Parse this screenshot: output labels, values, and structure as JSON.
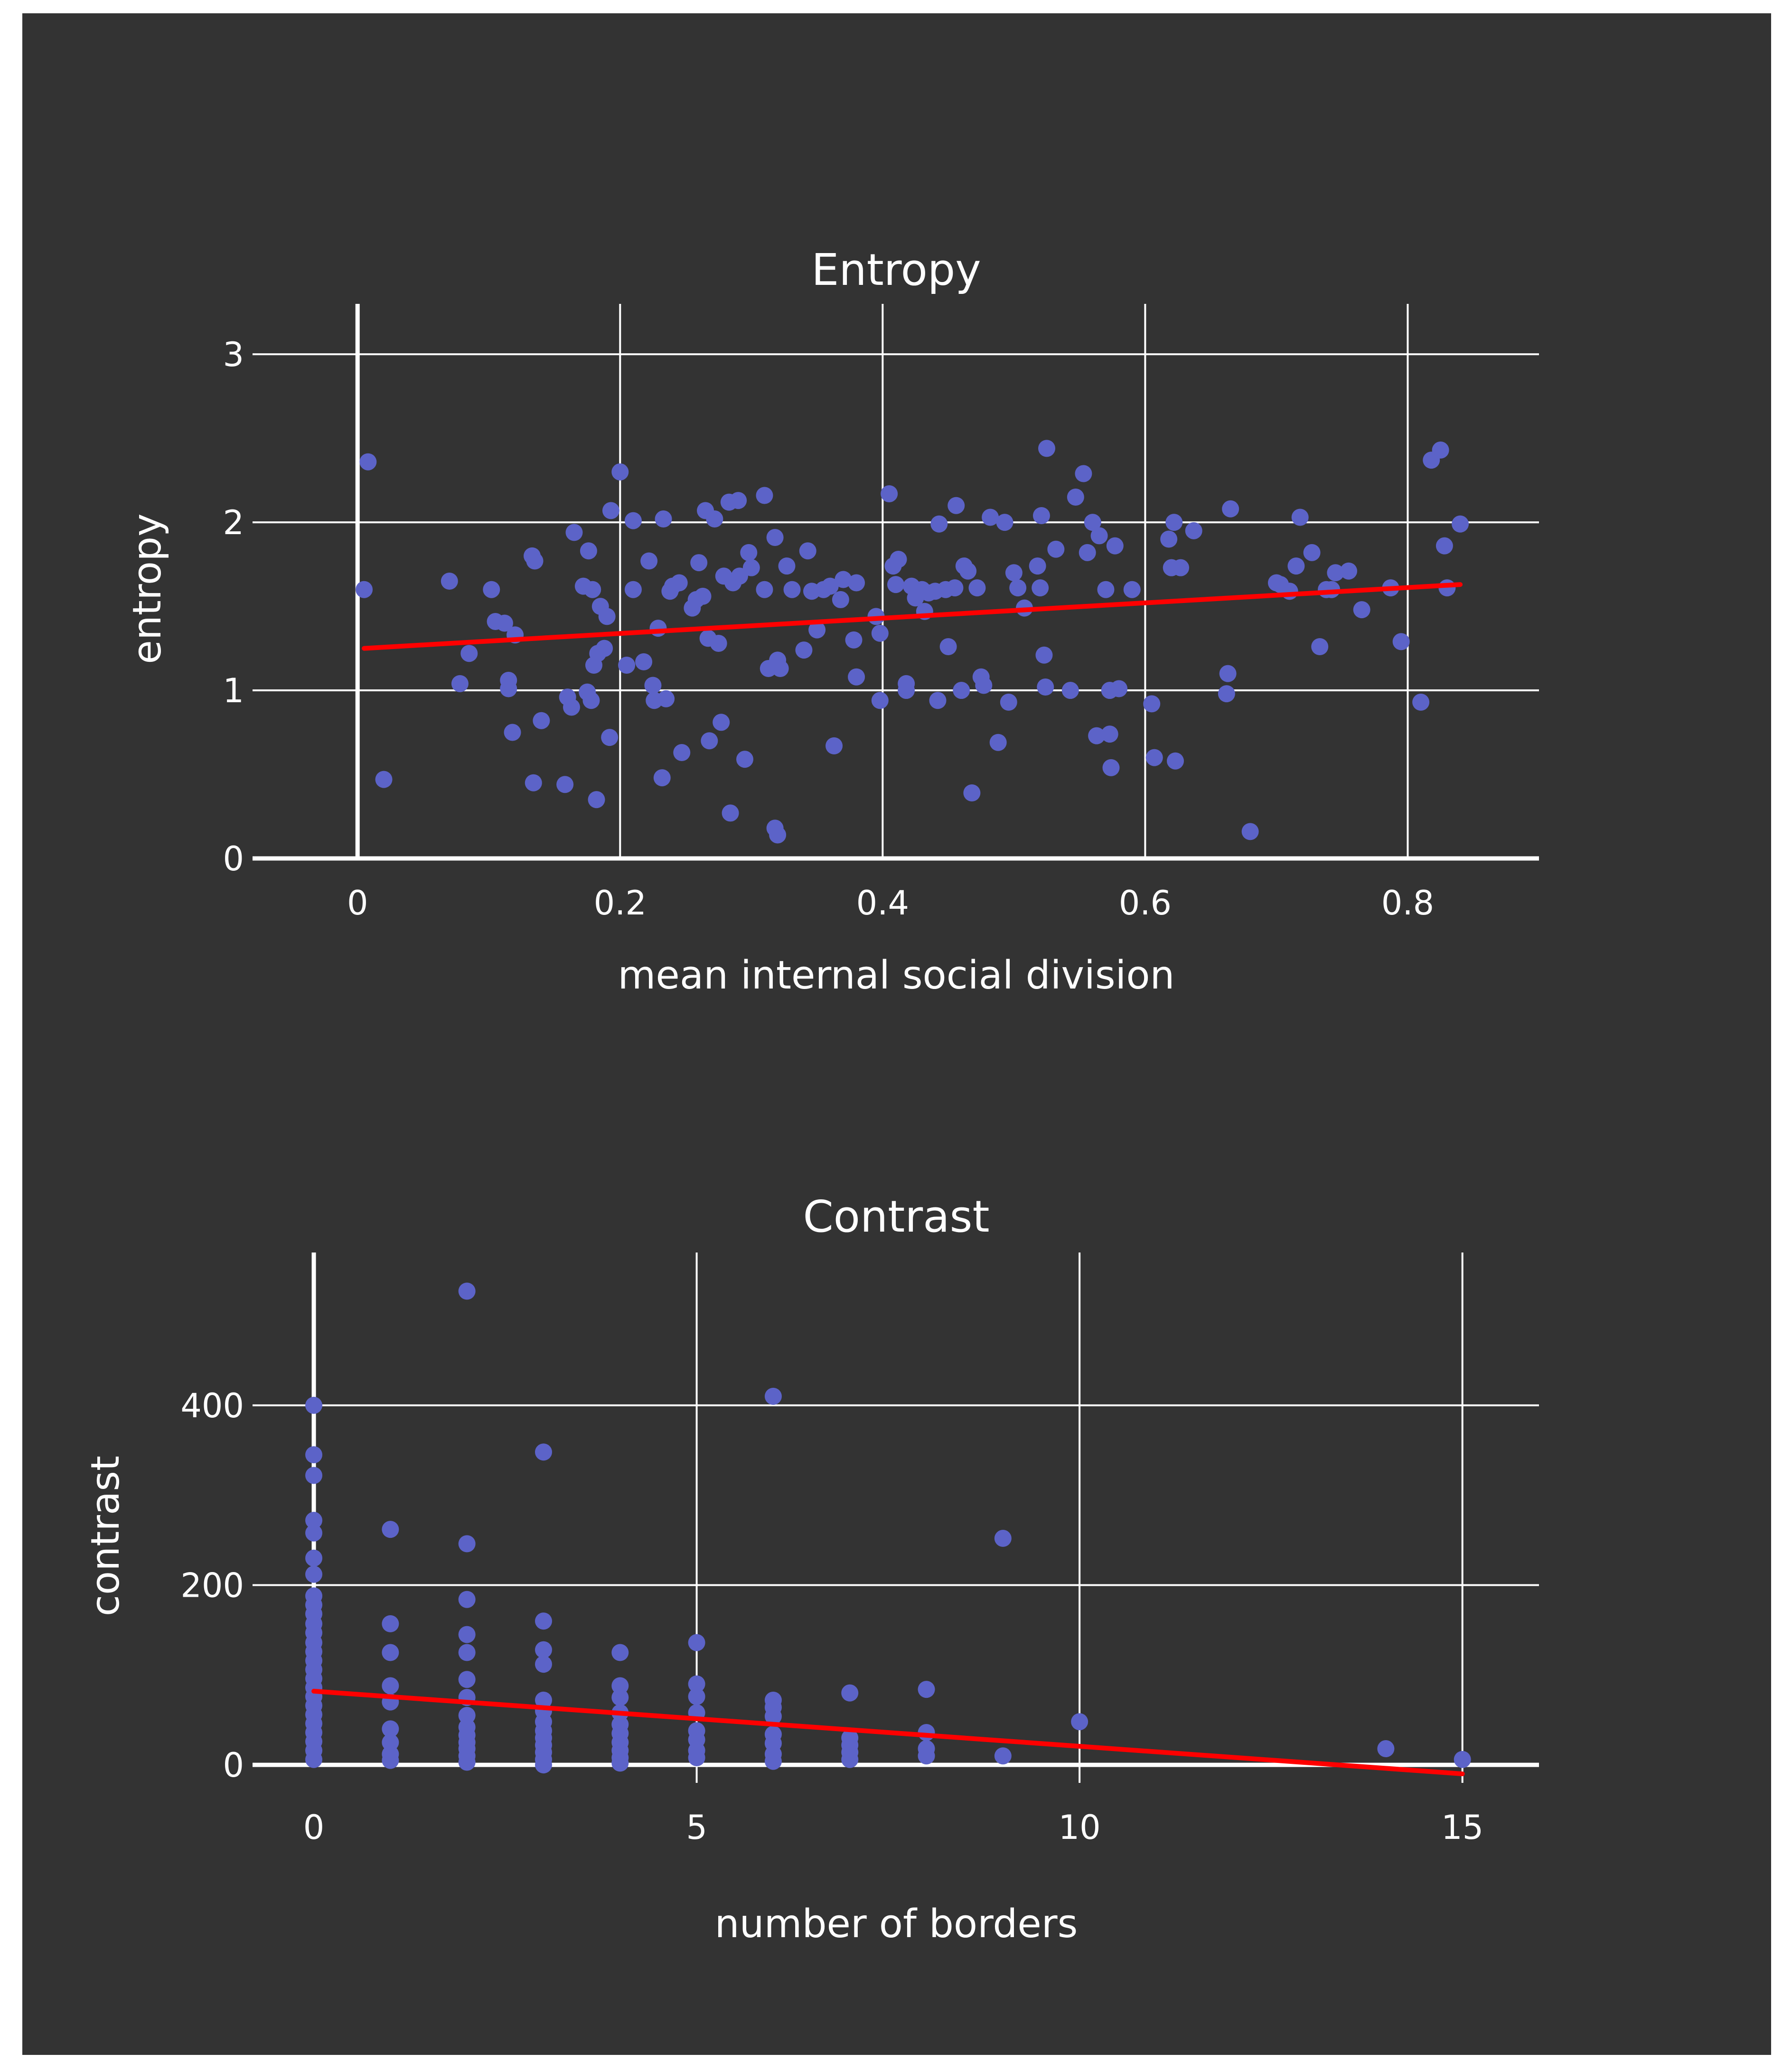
{
  "colors": {
    "background": "#333333",
    "grid": "#ffffff",
    "points": "#5c63c8",
    "trend": "#ff0000",
    "text": "#ffffff"
  },
  "chart_data": [
    {
      "type": "scatter",
      "title": "Entropy",
      "xlabel": "mean internal social division",
      "ylabel": "entropy",
      "xlim": [
        -0.08,
        0.9
      ],
      "ylim": [
        0,
        3.3
      ],
      "xticks": [
        0,
        0.2,
        0.4,
        0.6,
        0.8
      ],
      "xtick_labels": [
        "0",
        "0.2",
        "0.4",
        "0.6",
        "0.8"
      ],
      "yticks": [
        0,
        1,
        2,
        3
      ],
      "ytick_labels": [
        "0",
        "1",
        "2",
        "3"
      ],
      "grid": true,
      "trendline": {
        "x": [
          0.005,
          0.84
        ],
        "y": [
          1.25,
          1.63
        ]
      },
      "points": [
        [
          0.005,
          1.6
        ],
        [
          0.008,
          2.36
        ],
        [
          0.02,
          0.47
        ],
        [
          0.07,
          1.65
        ],
        [
          0.078,
          1.04
        ],
        [
          0.085,
          1.22
        ],
        [
          0.102,
          1.6
        ],
        [
          0.105,
          1.41
        ],
        [
          0.112,
          1.4
        ],
        [
          0.115,
          1.06
        ],
        [
          0.115,
          1.01
        ],
        [
          0.118,
          0.75
        ],
        [
          0.12,
          1.33
        ],
        [
          0.133,
          1.8
        ],
        [
          0.134,
          0.45
        ],
        [
          0.135,
          1.77
        ],
        [
          0.14,
          0.82
        ],
        [
          0.158,
          0.44
        ],
        [
          0.16,
          0.96
        ],
        [
          0.163,
          0.9
        ],
        [
          0.165,
          1.94
        ],
        [
          0.172,
          1.62
        ],
        [
          0.175,
          0.99
        ],
        [
          0.176,
          1.83
        ],
        [
          0.178,
          0.94
        ],
        [
          0.179,
          1.6
        ],
        [
          0.18,
          1.15
        ],
        [
          0.182,
          0.35
        ],
        [
          0.183,
          1.22
        ],
        [
          0.185,
          1.5
        ],
        [
          0.188,
          1.25
        ],
        [
          0.19,
          1.44
        ],
        [
          0.192,
          0.72
        ],
        [
          0.193,
          2.07
        ],
        [
          0.2,
          2.3
        ],
        [
          0.205,
          1.15
        ],
        [
          0.21,
          2.01
        ],
        [
          0.21,
          1.6
        ],
        [
          0.218,
          1.17
        ],
        [
          0.222,
          1.77
        ],
        [
          0.225,
          1.03
        ],
        [
          0.226,
          0.94
        ],
        [
          0.229,
          1.37
        ],
        [
          0.232,
          0.48
        ],
        [
          0.233,
          2.02
        ],
        [
          0.235,
          0.95
        ],
        [
          0.238,
          1.59
        ],
        [
          0.24,
          1.62
        ],
        [
          0.245,
          1.64
        ],
        [
          0.247,
          0.63
        ],
        [
          0.255,
          1.49
        ],
        [
          0.258,
          1.54
        ],
        [
          0.26,
          1.76
        ],
        [
          0.263,
          1.56
        ],
        [
          0.265,
          2.07
        ],
        [
          0.267,
          1.31
        ],
        [
          0.268,
          0.7
        ],
        [
          0.272,
          2.02
        ],
        [
          0.275,
          1.28
        ],
        [
          0.277,
          0.81
        ],
        [
          0.279,
          1.68
        ],
        [
          0.283,
          2.12
        ],
        [
          0.284,
          0.27
        ],
        [
          0.286,
          1.64
        ],
        [
          0.29,
          2.13
        ],
        [
          0.291,
          1.68
        ],
        [
          0.295,
          0.59
        ],
        [
          0.298,
          1.82
        ],
        [
          0.3,
          1.73
        ],
        [
          0.31,
          1.6
        ],
        [
          0.31,
          2.16
        ],
        [
          0.313,
          1.13
        ],
        [
          0.318,
          0.18
        ],
        [
          0.318,
          1.91
        ],
        [
          0.32,
          0.14
        ],
        [
          0.32,
          1.18
        ],
        [
          0.322,
          1.13
        ],
        [
          0.327,
          1.74
        ],
        [
          0.331,
          1.6
        ],
        [
          0.34,
          1.24
        ],
        [
          0.343,
          1.83
        ],
        [
          0.346,
          1.59
        ],
        [
          0.35,
          1.36
        ],
        [
          0.355,
          1.6
        ],
        [
          0.36,
          1.62
        ],
        [
          0.363,
          0.67
        ],
        [
          0.368,
          1.54
        ],
        [
          0.37,
          1.66
        ],
        [
          0.378,
          1.3
        ],
        [
          0.38,
          1.64
        ],
        [
          0.38,
          1.08
        ],
        [
          0.395,
          1.44
        ],
        [
          0.398,
          1.34
        ],
        [
          0.398,
          0.94
        ],
        [
          0.405,
          2.17
        ],
        [
          0.408,
          1.74
        ],
        [
          0.41,
          1.63
        ],
        [
          0.412,
          1.78
        ],
        [
          0.418,
          1.04
        ],
        [
          0.418,
          1.0
        ],
        [
          0.422,
          1.62
        ],
        [
          0.425,
          1.55
        ],
        [
          0.43,
          1.6
        ],
        [
          0.432,
          1.47
        ],
        [
          0.435,
          1.58
        ],
        [
          0.44,
          1.59
        ],
        [
          0.442,
          0.94
        ],
        [
          0.443,
          1.99
        ],
        [
          0.448,
          1.6
        ],
        [
          0.45,
          1.26
        ],
        [
          0.455,
          1.61
        ],
        [
          0.456,
          2.1
        ],
        [
          0.46,
          1.0
        ],
        [
          0.462,
          1.74
        ],
        [
          0.465,
          1.71
        ],
        [
          0.468,
          0.39
        ],
        [
          0.472,
          1.61
        ],
        [
          0.475,
          1.08
        ],
        [
          0.477,
          1.03
        ],
        [
          0.482,
          2.03
        ],
        [
          0.488,
          0.69
        ],
        [
          0.493,
          2.0
        ],
        [
          0.496,
          0.93
        ],
        [
          0.5,
          1.7
        ],
        [
          0.503,
          1.61
        ],
        [
          0.508,
          1.49
        ],
        [
          0.518,
          1.74
        ],
        [
          0.52,
          1.61
        ],
        [
          0.521,
          2.04
        ],
        [
          0.523,
          1.21
        ],
        [
          0.524,
          1.02
        ],
        [
          0.525,
          2.44
        ],
        [
          0.532,
          1.84
        ],
        [
          0.543,
          1.0
        ],
        [
          0.547,
          2.15
        ],
        [
          0.553,
          2.29
        ],
        [
          0.556,
          1.82
        ],
        [
          0.56,
          2.0
        ],
        [
          0.563,
          0.73
        ],
        [
          0.565,
          1.92
        ],
        [
          0.57,
          1.6
        ],
        [
          0.573,
          0.74
        ],
        [
          0.573,
          1.0
        ],
        [
          0.574,
          0.54
        ],
        [
          0.577,
          1.86
        ],
        [
          0.58,
          1.01
        ],
        [
          0.59,
          1.6
        ],
        [
          0.605,
          0.92
        ],
        [
          0.607,
          0.6
        ],
        [
          0.618,
          1.9
        ],
        [
          0.62,
          1.73
        ],
        [
          0.622,
          2.0
        ],
        [
          0.623,
          0.58
        ],
        [
          0.627,
          1.73
        ],
        [
          0.637,
          1.95
        ],
        [
          0.662,
          0.98
        ],
        [
          0.663,
          1.1
        ],
        [
          0.665,
          2.08
        ],
        [
          0.7,
          1.64
        ],
        [
          0.703,
          1.63
        ],
        [
          0.71,
          1.59
        ],
        [
          0.71,
          1.59
        ],
        [
          0.715,
          1.74
        ],
        [
          0.718,
          2.03
        ],
        [
          0.727,
          1.82
        ],
        [
          0.733,
          1.26
        ],
        [
          0.738,
          1.6
        ],
        [
          0.742,
          1.6
        ],
        [
          0.745,
          1.7
        ],
        [
          0.755,
          1.71
        ],
        [
          0.765,
          1.48
        ],
        [
          0.68,
          0.16
        ],
        [
          0.787,
          1.61
        ],
        [
          0.795,
          1.29
        ],
        [
          0.81,
          0.93
        ],
        [
          0.818,
          2.37
        ],
        [
          0.825,
          2.43
        ],
        [
          0.828,
          1.86
        ],
        [
          0.83,
          1.61
        ],
        [
          0.84,
          1.99
        ]
      ]
    },
    {
      "type": "scatter",
      "title": "Contrast",
      "xlabel": "number of borders",
      "ylabel": "contrast",
      "xlim": [
        -0.8,
        16
      ],
      "ylim": [
        -20,
        570
      ],
      "xticks": [
        0,
        5,
        10,
        15
      ],
      "xtick_labels": [
        "0",
        "5",
        "10",
        "15"
      ],
      "yticks": [
        0,
        200,
        400
      ],
      "ytick_labels": [
        "0",
        "200",
        "400"
      ],
      "grid": true,
      "trendline": {
        "x": [
          0,
          15
        ],
        "y": [
          82,
          -10
        ]
      },
      "points": [
        [
          0,
          400
        ],
        [
          0,
          345
        ],
        [
          0,
          322
        ],
        [
          0,
          272
        ],
        [
          0,
          258
        ],
        [
          0,
          230
        ],
        [
          0,
          212
        ],
        [
          0,
          188
        ],
        [
          0,
          178
        ],
        [
          0,
          168
        ],
        [
          0,
          157
        ],
        [
          0,
          147
        ],
        [
          0,
          136
        ],
        [
          0,
          126
        ],
        [
          0,
          116
        ],
        [
          0,
          106
        ],
        [
          0,
          96
        ],
        [
          0,
          86
        ],
        [
          0,
          76
        ],
        [
          0,
          66
        ],
        [
          0,
          56
        ],
        [
          0,
          46
        ],
        [
          0,
          36
        ],
        [
          0,
          26
        ],
        [
          0,
          16
        ],
        [
          0,
          6
        ],
        [
          1,
          262
        ],
        [
          1,
          157
        ],
        [
          1,
          125
        ],
        [
          1,
          88
        ],
        [
          1,
          70
        ],
        [
          1,
          40
        ],
        [
          1,
          25
        ],
        [
          1,
          12
        ],
        [
          1,
          5
        ],
        [
          2,
          527
        ],
        [
          2,
          246
        ],
        [
          2,
          184
        ],
        [
          2,
          145
        ],
        [
          2,
          125
        ],
        [
          2,
          95
        ],
        [
          2,
          75
        ],
        [
          2,
          55
        ],
        [
          2,
          42
        ],
        [
          2,
          33
        ],
        [
          2,
          25
        ],
        [
          2,
          18
        ],
        [
          2,
          10
        ],
        [
          2,
          3
        ],
        [
          3,
          348
        ],
        [
          3,
          160
        ],
        [
          3,
          128
        ],
        [
          3,
          112
        ],
        [
          3,
          72
        ],
        [
          3,
          60
        ],
        [
          3,
          48
        ],
        [
          3,
          38
        ],
        [
          3,
          30
        ],
        [
          3,
          22
        ],
        [
          3,
          14
        ],
        [
          3,
          6
        ],
        [
          3,
          0
        ],
        [
          4,
          125
        ],
        [
          4,
          88
        ],
        [
          4,
          75
        ],
        [
          4,
          58
        ],
        [
          4,
          45
        ],
        [
          4,
          35
        ],
        [
          4,
          25
        ],
        [
          4,
          16
        ],
        [
          4,
          8
        ],
        [
          4,
          2
        ],
        [
          5,
          136
        ],
        [
          5,
          90
        ],
        [
          5,
          76
        ],
        [
          5,
          58
        ],
        [
          5,
          38
        ],
        [
          5,
          28
        ],
        [
          5,
          16
        ],
        [
          5,
          8
        ],
        [
          6,
          410
        ],
        [
          6,
          72
        ],
        [
          6,
          64
        ],
        [
          6,
          54
        ],
        [
          6,
          34
        ],
        [
          6,
          24
        ],
        [
          6,
          12
        ],
        [
          6,
          4
        ],
        [
          7,
          80
        ],
        [
          7,
          30
        ],
        [
          7,
          22
        ],
        [
          7,
          14
        ],
        [
          7,
          6
        ],
        [
          8,
          84
        ],
        [
          8,
          36
        ],
        [
          8,
          18
        ],
        [
          8,
          10
        ],
        [
          9,
          252
        ],
        [
          9,
          10
        ],
        [
          10,
          48
        ],
        [
          14,
          18
        ],
        [
          15,
          6
        ]
      ]
    }
  ]
}
